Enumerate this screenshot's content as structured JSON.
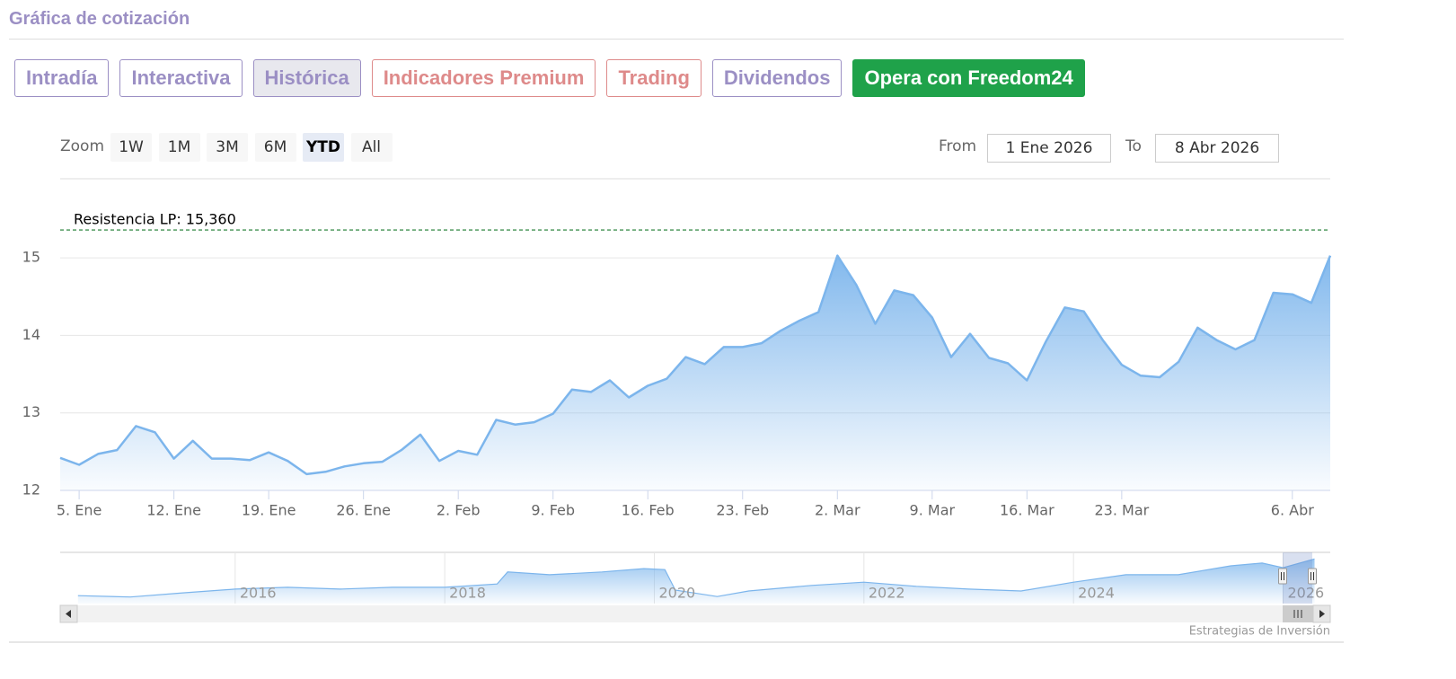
{
  "header": {
    "title": "Gráfica de cotización"
  },
  "tabs": {
    "active": 2,
    "items": [
      {
        "label": "Intradía",
        "color": "#9b8fc4",
        "filled": false
      },
      {
        "label": "Interactiva",
        "color": "#9b8fc4",
        "filled": false
      },
      {
        "label": "Histórica",
        "color": "#9b8fc4",
        "filled": false
      },
      {
        "label": "Indicadores Premium",
        "color": "#de8a8a",
        "filled": false
      },
      {
        "label": "Trading",
        "color": "#de8a8a",
        "filled": false
      },
      {
        "label": "Dividendos",
        "color": "#9b8fc4",
        "filled": false
      },
      {
        "label": "Opera con Freedom24",
        "color": "#1fa24a",
        "filled": true
      }
    ]
  },
  "zoom": {
    "label": "Zoom",
    "buttons": [
      "1W",
      "1M",
      "3M",
      "6M",
      "YTD",
      "All"
    ],
    "selected": 4
  },
  "range": {
    "from_label": "From",
    "from": "1 Ene 2026",
    "to_label": "To",
    "to": "8 Abr 2026"
  },
  "credit": "Estrategias de Inversión",
  "chart_data": {
    "type": "area",
    "color": "#7cb5ec",
    "categories": [
      null,
      "5. Ene",
      null,
      null,
      null,
      null,
      "12. Ene",
      null,
      null,
      null,
      null,
      "19. Ene",
      null,
      null,
      null,
      null,
      "26. Ene",
      null,
      null,
      null,
      null,
      "2. Feb",
      null,
      null,
      null,
      null,
      "9. Feb",
      null,
      null,
      null,
      null,
      "16. Feb",
      null,
      null,
      null,
      null,
      "23. Feb",
      null,
      null,
      null,
      null,
      "2. Mar",
      null,
      null,
      null,
      null,
      "9. Mar",
      null,
      null,
      null,
      null,
      "16. Mar",
      null,
      null,
      null,
      null,
      "23. Mar",
      null,
      null,
      null,
      null,
      null,
      null,
      null,
      null,
      "6. Abr",
      null,
      null
    ],
    "values": [
      12.42,
      12.33,
      12.47,
      12.52,
      12.83,
      12.75,
      12.41,
      12.64,
      12.41,
      12.41,
      12.39,
      12.49,
      12.38,
      12.21,
      12.24,
      12.31,
      12.35,
      12.37,
      12.52,
      12.72,
      12.38,
      12.51,
      12.46,
      12.91,
      12.85,
      12.88,
      12.99,
      13.3,
      13.27,
      13.42,
      13.2,
      13.35,
      13.44,
      13.72,
      13.63,
      13.85,
      13.85,
      13.9,
      14.06,
      14.19,
      14.3,
      15.03,
      14.65,
      14.15,
      14.58,
      14.52,
      14.23,
      13.72,
      14.02,
      13.71,
      13.64,
      13.42,
      13.92,
      14.36,
      14.31,
      13.94,
      13.62,
      13.48,
      13.46,
      13.66,
      14.1,
      13.94,
      13.82,
      13.94,
      14.55,
      14.53,
      14.42,
      15.03
    ],
    "ylim": [
      12,
      15.5
    ],
    "yticks": [
      12,
      13,
      14,
      15
    ],
    "grid": true,
    "plot_lines": [
      {
        "value": 15.36,
        "label": "Resistencia LP: 15,360",
        "color": "#1a7a2e"
      }
    ],
    "navigator": {
      "color": "#7cb5ec",
      "x": [
        2014.5,
        2015,
        2015.5,
        2016,
        2016.5,
        2017,
        2017.5,
        2018,
        2018.5,
        2018.6,
        2019,
        2019.5,
        2019.9,
        2020.1,
        2020.2,
        2020.6,
        2020.9,
        2021.5,
        2022,
        2022.5,
        2023,
        2023.5,
        2024,
        2024.5,
        2025,
        2025.5,
        2025.8,
        2026,
        2026.3
      ],
      "values": [
        6.7,
        6.4,
        7.3,
        8.1,
        8.5,
        8.1,
        8.5,
        8.5,
        9.2,
        11.8,
        11.2,
        11.8,
        12.5,
        12.3,
        7.9,
        6.5,
        7.7,
        8.9,
        9.6,
        8.7,
        8.1,
        7.7,
        9.6,
        11.2,
        11.2,
        13.1,
        13.7,
        12.7,
        14.6
      ],
      "xlim": [
        2014.33,
        2026.45
      ],
      "ylim": [
        5,
        16
      ],
      "xticks": [
        2016,
        2018,
        2020,
        2022,
        2024,
        2026
      ]
    }
  }
}
